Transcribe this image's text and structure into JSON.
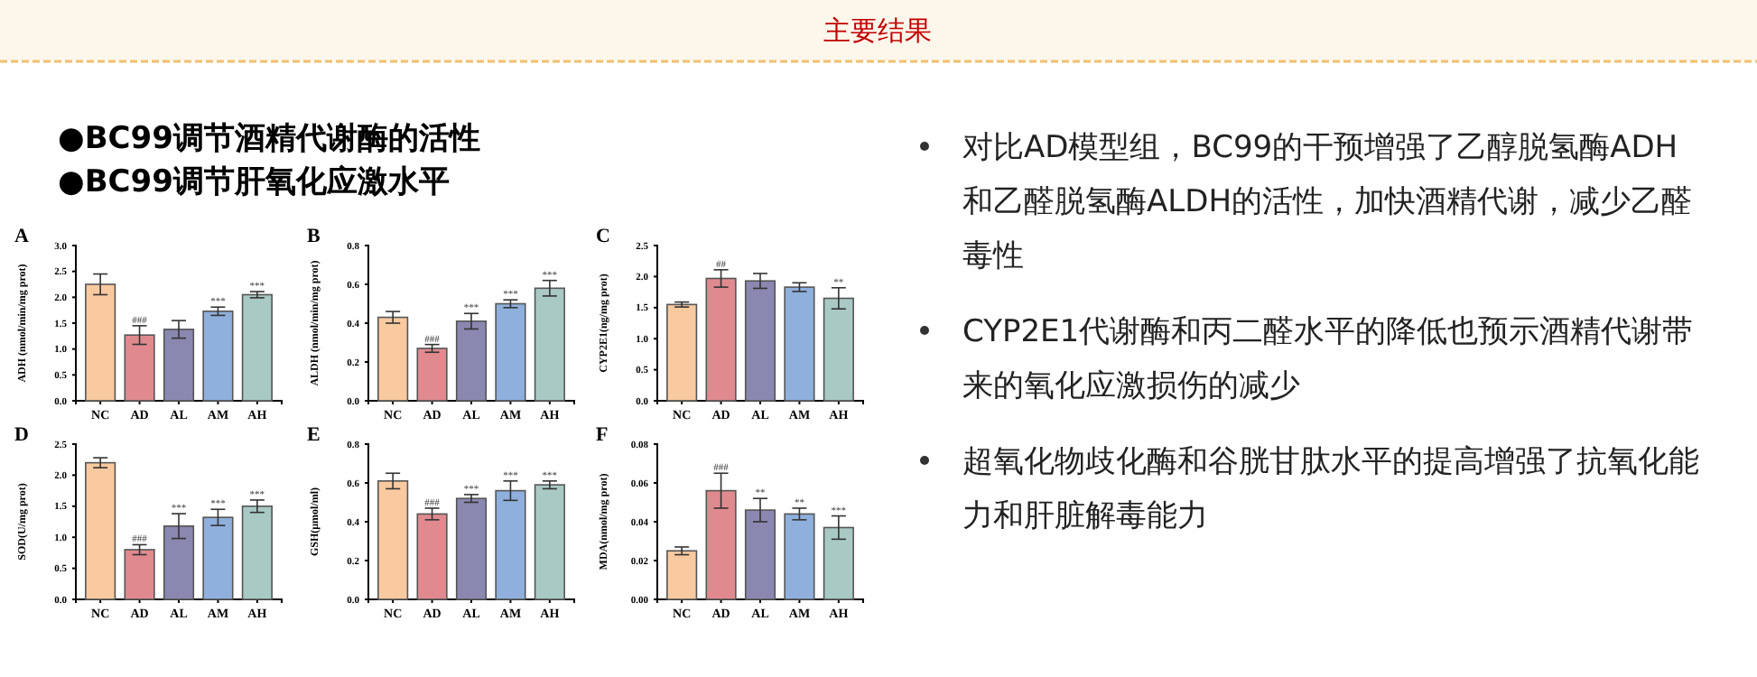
{
  "chart_data": [
    {
      "type": "other",
      "title": "主要结果",
      "annotations": [
        "●BC99调节酒精代谢酶的活性",
        "●BC99调节肝氧化应激水平",
        "对比AD模型组，BC99的干预增强了乙醇脱氢酶ADH和乙醛脱氢酶ALDH的活性，加快酒精代谢，减少乙醛毒性",
        "CYP2E1代谢酶和丙二醛水平的降低也预示酒精代谢带来的氧化应激损伤的减少",
        "超氧化物歧化酶和谷胱甘肽水平的提高增强了抗氧化能力和肝脏解毒能力"
      ]
    },
    {
      "type": "bar",
      "title": "A",
      "ylabel": "ADH (nmol/min/mg prot)",
      "categories": [
        "NC",
        "AD",
        "AL",
        "AM",
        "AH"
      ],
      "values": [
        2.25,
        1.27,
        1.38,
        1.73,
        2.05
      ],
      "errors": [
        0.2,
        0.18,
        0.17,
        0.08,
        0.06
      ],
      "colors": [
        "#f9c9a0",
        "#e08a8f",
        "#8a88b0",
        "#8fb0dc",
        "#a9c9c4"
      ],
      "ylim": [
        0,
        3
      ],
      "yticks": [
        {
          "value": 0,
          "label": "0.0"
        },
        {
          "value": 0.5,
          "label": "0.5"
        },
        {
          "value": 1,
          "label": "1.0"
        },
        {
          "value": 1.5,
          "label": "1.5"
        },
        {
          "value": 2,
          "label": "2.0"
        },
        {
          "value": 2.5,
          "label": "2.5"
        },
        {
          "value": 3,
          "label": "3.0"
        }
      ],
      "annotations": [
        {
          "text": "###",
          "x": "AD",
          "y": 1.45
        },
        {
          "text": "***",
          "x": "AM",
          "y": 1.81
        },
        {
          "text": "***",
          "x": "AH",
          "y": 2.11
        }
      ]
    },
    {
      "type": "bar",
      "title": "B",
      "ylabel": "ALDH (nmol/min/mg prot)",
      "categories": [
        "NC",
        "AD",
        "AL",
        "AM",
        "AH"
      ],
      "values": [
        0.43,
        0.27,
        0.41,
        0.5,
        0.58
      ],
      "errors": [
        0.03,
        0.02,
        0.04,
        0.02,
        0.04
      ],
      "colors": [
        "#f9c9a0",
        "#e08a8f",
        "#8a88b0",
        "#8fb0dc",
        "#a9c9c4"
      ],
      "ylim": [
        0,
        0.8
      ],
      "yticks": [
        {
          "value": 0,
          "label": "0.0"
        },
        {
          "value": 0.2,
          "label": "0.2"
        },
        {
          "value": 0.4,
          "label": "0.4"
        },
        {
          "value": 0.6,
          "label": "0.6"
        },
        {
          "value": 0.8,
          "label": "0.8"
        }
      ],
      "annotations": [
        {
          "text": "###",
          "x": "AD",
          "y": 0.29
        },
        {
          "text": "***",
          "x": "AL",
          "y": 0.45
        },
        {
          "text": "***",
          "x": "AM",
          "y": 0.52
        },
        {
          "text": "***",
          "x": "AH",
          "y": 0.62
        }
      ]
    },
    {
      "type": "bar",
      "title": "C",
      "ylabel": "CYP2E1(ng/mg prot)",
      "categories": [
        "NC",
        "AD",
        "AL",
        "AM",
        "AH"
      ],
      "values": [
        1.55,
        1.97,
        1.93,
        1.83,
        1.65
      ],
      "errors": [
        0.04,
        0.14,
        0.12,
        0.07,
        0.17
      ],
      "colors": [
        "#f9c9a0",
        "#e08a8f",
        "#8a88b0",
        "#8fb0dc",
        "#a9c9c4"
      ],
      "ylim": [
        0,
        2.5
      ],
      "yticks": [
        {
          "value": 0,
          "label": "0.0"
        },
        {
          "value": 0.5,
          "label": "0.5"
        },
        {
          "value": 1,
          "label": "1.0"
        },
        {
          "value": 1.5,
          "label": "1.5"
        },
        {
          "value": 2,
          "label": "2.0"
        },
        {
          "value": 2.5,
          "label": "2.5"
        }
      ],
      "annotations": [
        {
          "text": "##",
          "x": "AD",
          "y": 2.11
        },
        {
          "text": "**",
          "x": "AH",
          "y": 1.82
        }
      ]
    },
    {
      "type": "bar",
      "title": "D",
      "ylabel": "SOD(U/mg prot)",
      "categories": [
        "NC",
        "AD",
        "AL",
        "AM",
        "AH"
      ],
      "values": [
        2.2,
        0.8,
        1.18,
        1.32,
        1.5
      ],
      "errors": [
        0.08,
        0.08,
        0.2,
        0.13,
        0.1
      ],
      "colors": [
        "#f9c9a0",
        "#e08a8f",
        "#8a88b0",
        "#8fb0dc",
        "#a9c9c4"
      ],
      "ylim": [
        0,
        2.5
      ],
      "yticks": [
        {
          "value": 0,
          "label": "0.0"
        },
        {
          "value": 0.5,
          "label": "0.5"
        },
        {
          "value": 1,
          "label": "1.0"
        },
        {
          "value": 1.5,
          "label": "1.5"
        },
        {
          "value": 2,
          "label": "2.0"
        },
        {
          "value": 2.5,
          "label": "2.5"
        }
      ],
      "annotations": [
        {
          "text": "###",
          "x": "AD",
          "y": 0.88
        },
        {
          "text": "***",
          "x": "AL",
          "y": 1.38
        },
        {
          "text": "***",
          "x": "AM",
          "y": 1.45
        },
        {
          "text": "***",
          "x": "AH",
          "y": 1.6
        }
      ]
    },
    {
      "type": "bar",
      "title": "E",
      "ylabel": "GSH(μmol/ml)",
      "categories": [
        "NC",
        "AD",
        "AL",
        "AM",
        "AH"
      ],
      "values": [
        0.61,
        0.44,
        0.52,
        0.56,
        0.59
      ],
      "errors": [
        0.04,
        0.03,
        0.02,
        0.05,
        0.02
      ],
      "colors": [
        "#f9c9a0",
        "#e08a8f",
        "#8a88b0",
        "#8fb0dc",
        "#a9c9c4"
      ],
      "ylim": [
        0,
        0.8
      ],
      "yticks": [
        {
          "value": 0,
          "label": "0.0"
        },
        {
          "value": 0.2,
          "label": "0.2"
        },
        {
          "value": 0.4,
          "label": "0.4"
        },
        {
          "value": 0.6,
          "label": "0.6"
        },
        {
          "value": 0.8,
          "label": "0.8"
        }
      ],
      "annotations": [
        {
          "text": "###",
          "x": "AD",
          "y": 0.47
        },
        {
          "text": "***",
          "x": "AL",
          "y": 0.54
        },
        {
          "text": "***",
          "x": "AM",
          "y": 0.61
        },
        {
          "text": "***",
          "x": "AH",
          "y": 0.61
        }
      ]
    },
    {
      "type": "bar",
      "title": "F",
      "ylabel": "MDA(nmol/mg prot)",
      "categories": [
        "NC",
        "AD",
        "AL",
        "AM",
        "AH"
      ],
      "values": [
        0.025,
        0.056,
        0.046,
        0.044,
        0.037
      ],
      "errors": [
        0.002,
        0.009,
        0.006,
        0.003,
        0.006
      ],
      "colors": [
        "#f9c9a0",
        "#e08a8f",
        "#8a88b0",
        "#8fb0dc",
        "#a9c9c4"
      ],
      "ylim": [
        0,
        0.08
      ],
      "yticks": [
        {
          "value": 0,
          "label": "0.00"
        },
        {
          "value": 0.02,
          "label": "0.02"
        },
        {
          "value": 0.04,
          "label": "0.04"
        },
        {
          "value": 0.06,
          "label": "0.06"
        },
        {
          "value": 0.08,
          "label": "0.08"
        }
      ],
      "annotations": [
        {
          "text": "###",
          "x": "AD",
          "y": 0.065
        },
        {
          "text": "**",
          "x": "AL",
          "y": 0.052
        },
        {
          "text": "**",
          "x": "AM",
          "y": 0.047
        },
        {
          "text": "***",
          "x": "AH",
          "y": 0.043
        }
      ]
    }
  ]
}
